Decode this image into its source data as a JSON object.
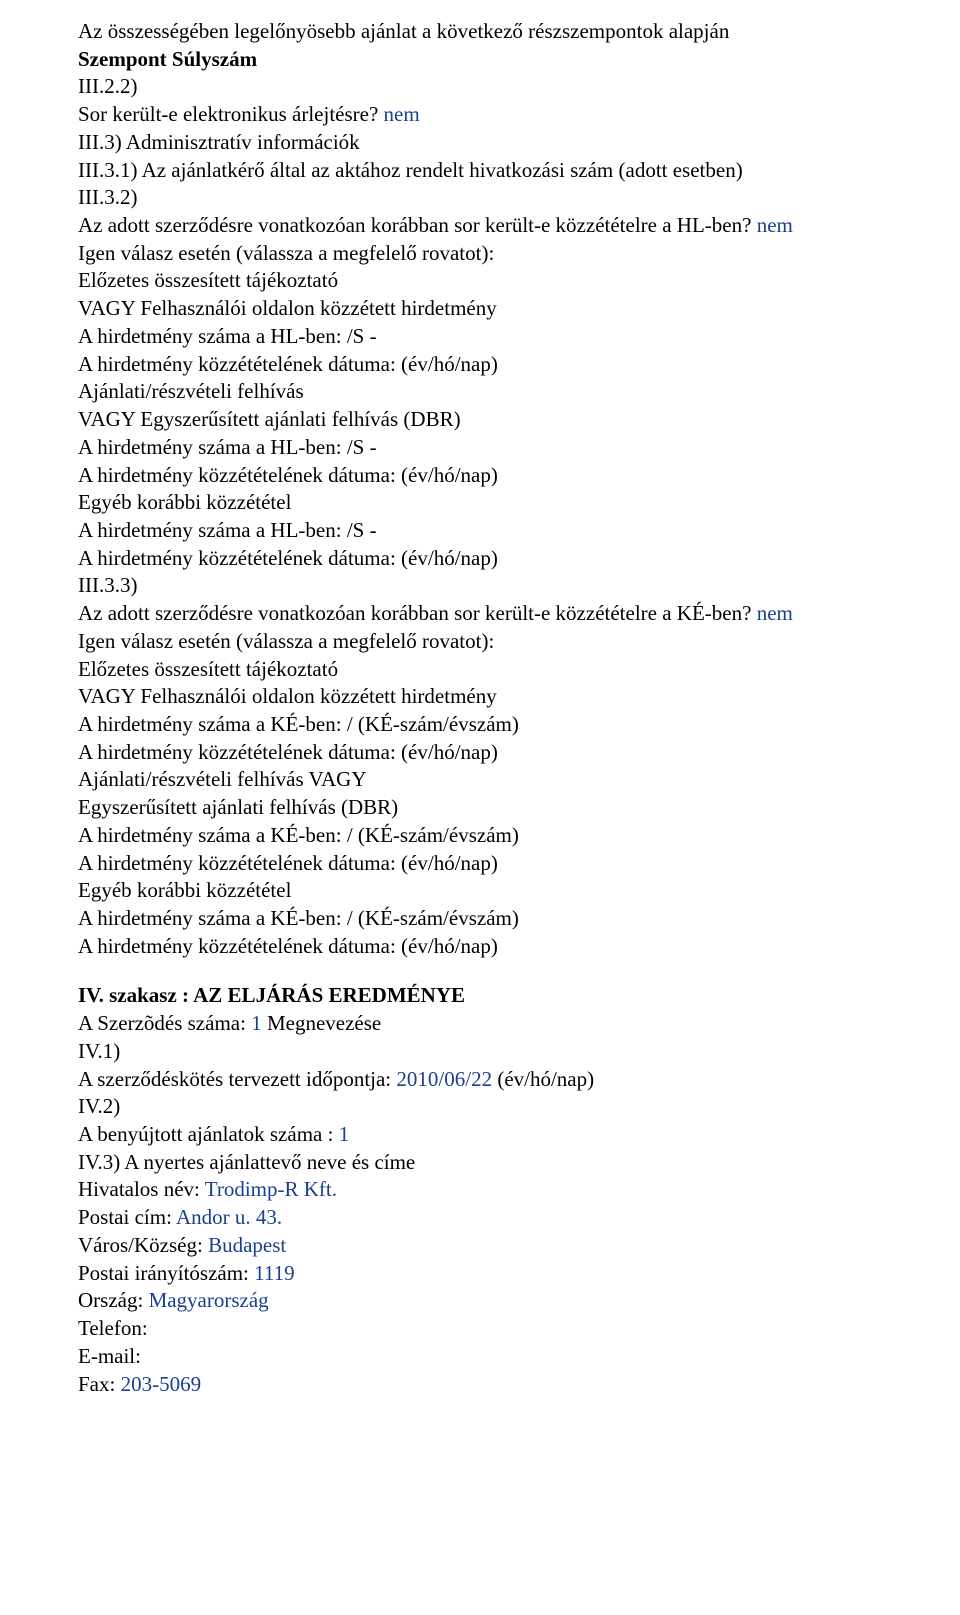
{
  "colors": {
    "text": "#000000",
    "value": "#1a3f8f",
    "background": "#ffffff"
  },
  "font": {
    "family": "Times New Roman",
    "size_pt": 16,
    "line_height": 1.32
  },
  "s1": {
    "l1": "Az összességében legelőnyösebb ajánlat a következő részszempontok alapján",
    "l2": "Szempont Súlyszám",
    "l3": "III.2.2)",
    "l4a": "Sor került-e elektronikus árlejtésre? ",
    "l4b": "nem",
    "l5": "III.3) Adminisztratív információk",
    "l6": "III.3.1) Az ajánlatkérő által az aktához rendelt hivatkozási szám (adott esetben)",
    "l7": "III.3.2)",
    "l8a": "Az adott szerződésre vonatkozóan korábban sor került-e közzétételre a HL-ben? ",
    "l8b": "nem",
    "l9": "Igen válasz esetén (válassza a megfelelő rovatot):",
    "l10": "Előzetes összesített tájékoztató",
    "l11": "VAGY Felhasználói oldalon közzétett hirdetmény",
    "l12": "A hirdetmény száma a HL-ben: /S -",
    "l13": "A hirdetmény közzétételének dátuma: (év/hó/nap)",
    "l14": "Ajánlati/részvételi felhívás",
    "l15": "VAGY Egyszerűsített ajánlati felhívás (DBR)",
    "l16": "A hirdetmény száma a HL-ben: /S -",
    "l17": "A hirdetmény közzétételének dátuma: (év/hó/nap)",
    "l18": "Egyéb korábbi közzététel",
    "l19": "A hirdetmény száma a HL-ben: /S -",
    "l20": "A hirdetmény közzétételének dátuma: (év/hó/nap)",
    "l21": "III.3.3)",
    "l22a": "Az adott szerződésre vonatkozóan korábban sor került-e közzétételre a KÉ-ben? ",
    "l22b": "nem",
    "l23": "Igen válasz esetén (válassza a megfelelő rovatot):",
    "l24": "Előzetes összesített tájékoztató",
    "l25": "VAGY Felhasználói oldalon közzétett hirdetmény",
    "l26": "A hirdetmény száma a KÉ-ben: / (KÉ-szám/évszám)",
    "l27": "A hirdetmény közzétételének dátuma: (év/hó/nap)",
    "l28": "Ajánlati/részvételi felhívás VAGY",
    "l29": "Egyszerűsített ajánlati felhívás (DBR)",
    "l30": "A hirdetmény száma a KÉ-ben: / (KÉ-szám/évszám)",
    "l31": "A hirdetmény közzétételének dátuma: (év/hó/nap)",
    "l32": "Egyéb korábbi közzététel",
    "l33": "A hirdetmény száma a KÉ-ben: / (KÉ-szám/évszám)",
    "l34": "A hirdetmény közzétételének dátuma: (év/hó/nap)"
  },
  "s4": {
    "heading": "IV. szakasz : AZ ELJÁRÁS EREDMÉNYE",
    "l1a": "A Szerzõdés száma: ",
    "l1b": "1",
    "l1c": " Megnevezése",
    "l2": "IV.1)",
    "l3a": "A szerződéskötés tervezett időpontja: ",
    "l3b": "2010/06/22",
    "l3c": " (év/hó/nap)",
    "l4": "IV.2)",
    "l5a": "A benyújtott ajánlatok száma : ",
    "l5b": "1",
    "l6": "IV.3) A nyertes ajánlattevő neve és címe",
    "l7a": "Hivatalos név: ",
    "l7b": "Trodimp-R Kft.",
    "l8a": "Postai cím: ",
    "l8b": "Andor u. 43.",
    "l9a": "Város/Község: ",
    "l9b": "Budapest",
    "l10a": "Postai irányítószám: ",
    "l10b": "1119",
    "l11a": "Ország: ",
    "l11b": "Magyarország",
    "l12": "Telefon:",
    "l13": "E-mail:",
    "l14a": "Fax: ",
    "l14b": "203-5069"
  }
}
